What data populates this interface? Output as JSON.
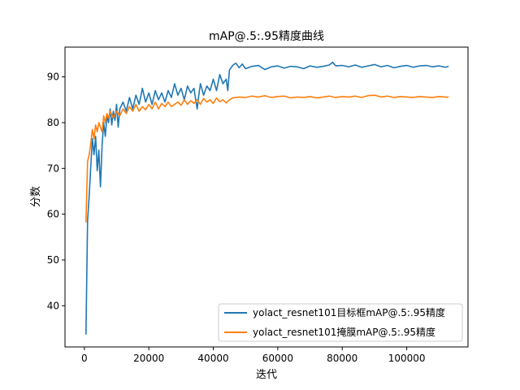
{
  "chart_data": {
    "type": "line",
    "title": "mAP@.5:.95精度曲线",
    "xlabel": "迭代",
    "ylabel": "分数",
    "xlim": [
      -6000,
      119000
    ],
    "ylim": [
      31,
      96.5
    ],
    "xticks": [
      0,
      20000,
      40000,
      60000,
      80000,
      100000
    ],
    "xtick_labels": [
      "0",
      "20000",
      "40000",
      "60000",
      "80000",
      "100000"
    ],
    "yticks": [
      40,
      50,
      60,
      70,
      80,
      90
    ],
    "ytick_labels": [
      "40",
      "50",
      "60",
      "70",
      "80",
      "90"
    ],
    "grid": false,
    "legend_position": "lower-right",
    "series": [
      {
        "name": "yolact_resnet101目标框mAP@.5:.95精度",
        "color": "#1f77b4",
        "points": [
          [
            500,
            33.7
          ],
          [
            1000,
            58.5
          ],
          [
            1500,
            64.0
          ],
          [
            2000,
            70.5
          ],
          [
            2500,
            76.5
          ],
          [
            3000,
            73.0
          ],
          [
            3500,
            77.0
          ],
          [
            4000,
            69.5
          ],
          [
            4500,
            74.0
          ],
          [
            5000,
            66.0
          ],
          [
            5500,
            75.0
          ],
          [
            6000,
            80.0
          ],
          [
            6500,
            77.0
          ],
          [
            7000,
            81.5
          ],
          [
            7500,
            80.0
          ],
          [
            8000,
            83.0
          ],
          [
            8500,
            79.5
          ],
          [
            9000,
            82.5
          ],
          [
            9500,
            80.5
          ],
          [
            10000,
            84.0
          ],
          [
            10500,
            79.0
          ],
          [
            11000,
            83.0
          ],
          [
            12000,
            84.5
          ],
          [
            13000,
            82.5
          ],
          [
            14000,
            85.5
          ],
          [
            15000,
            83.0
          ],
          [
            16000,
            86.0
          ],
          [
            17000,
            84.0
          ],
          [
            18000,
            87.5
          ],
          [
            19000,
            84.5
          ],
          [
            20000,
            86.5
          ],
          [
            21000,
            84.0
          ],
          [
            22000,
            87.0
          ],
          [
            23000,
            85.0
          ],
          [
            24000,
            86.5
          ],
          [
            25000,
            84.5
          ],
          [
            26000,
            87.0
          ],
          [
            27000,
            85.5
          ],
          [
            28000,
            88.5
          ],
          [
            29000,
            86.0
          ],
          [
            30000,
            87.5
          ],
          [
            31000,
            85.0
          ],
          [
            32000,
            88.0
          ],
          [
            33000,
            86.5
          ],
          [
            34000,
            87.5
          ],
          [
            35000,
            83.0
          ],
          [
            35500,
            86.0
          ],
          [
            36000,
            88.5
          ],
          [
            37000,
            86.0
          ],
          [
            38000,
            88.0
          ],
          [
            39000,
            87.0
          ],
          [
            40000,
            89.5
          ],
          [
            41000,
            87.0
          ],
          [
            42000,
            90.5
          ],
          [
            43000,
            88.5
          ],
          [
            44000,
            89.5
          ],
          [
            44500,
            87.0
          ],
          [
            45000,
            91.5
          ],
          [
            46000,
            92.5
          ],
          [
            47000,
            93.0
          ],
          [
            48000,
            92.0
          ],
          [
            49000,
            92.8
          ],
          [
            50000,
            91.8
          ],
          [
            52000,
            92.3
          ],
          [
            54000,
            92.5
          ],
          [
            56000,
            91.6
          ],
          [
            58000,
            92.2
          ],
          [
            60000,
            92.4
          ],
          [
            62000,
            91.9
          ],
          [
            64000,
            92.3
          ],
          [
            66000,
            92.2
          ],
          [
            68000,
            91.8
          ],
          [
            70000,
            92.4
          ],
          [
            72000,
            92.1
          ],
          [
            74000,
            92.3
          ],
          [
            76000,
            92.6
          ],
          [
            77000,
            93.2
          ],
          [
            78000,
            92.4
          ],
          [
            80000,
            92.5
          ],
          [
            82000,
            92.2
          ],
          [
            84000,
            92.6
          ],
          [
            86000,
            92.1
          ],
          [
            88000,
            92.4
          ],
          [
            90000,
            92.7
          ],
          [
            92000,
            92.2
          ],
          [
            94000,
            92.5
          ],
          [
            96000,
            92.0
          ],
          [
            98000,
            92.3
          ],
          [
            100000,
            92.5
          ],
          [
            102000,
            92.1
          ],
          [
            104000,
            92.4
          ],
          [
            106000,
            92.5
          ],
          [
            108000,
            92.2
          ],
          [
            110000,
            92.4
          ],
          [
            112000,
            92.1
          ],
          [
            113000,
            92.3
          ]
        ]
      },
      {
        "name": "yolact_resnet101掩膜mAP@.5:.95精度",
        "color": "#ff7f0e",
        "points": [
          [
            500,
            58.2
          ],
          [
            1000,
            71.5
          ],
          [
            1500,
            73.0
          ],
          [
            2000,
            75.5
          ],
          [
            2500,
            78.5
          ],
          [
            3000,
            76.5
          ],
          [
            3500,
            79.5
          ],
          [
            4000,
            78.0
          ],
          [
            4500,
            80.0
          ],
          [
            5000,
            79.0
          ],
          [
            5500,
            78.0
          ],
          [
            6000,
            81.5
          ],
          [
            6500,
            80.0
          ],
          [
            7000,
            82.0
          ],
          [
            7500,
            81.0
          ],
          [
            8000,
            82.5
          ],
          [
            9000,
            81.0
          ],
          [
            10000,
            82.5
          ],
          [
            11000,
            81.5
          ],
          [
            12000,
            83.0
          ],
          [
            13000,
            82.0
          ],
          [
            14000,
            83.5
          ],
          [
            15000,
            82.5
          ],
          [
            16000,
            84.0
          ],
          [
            17000,
            82.5
          ],
          [
            18000,
            83.5
          ],
          [
            19000,
            82.8
          ],
          [
            20000,
            84.0
          ],
          [
            21000,
            83.0
          ],
          [
            22000,
            84.5
          ],
          [
            23000,
            83.0
          ],
          [
            24000,
            84.2
          ],
          [
            25000,
            83.5
          ],
          [
            26000,
            84.5
          ],
          [
            27000,
            83.5
          ],
          [
            28000,
            84.0
          ],
          [
            29000,
            84.5
          ],
          [
            30000,
            83.8
          ],
          [
            31000,
            85.0
          ],
          [
            32000,
            84.0
          ],
          [
            33000,
            84.8
          ],
          [
            34000,
            84.2
          ],
          [
            35000,
            85.0
          ],
          [
            36000,
            84.0
          ],
          [
            37000,
            85.3
          ],
          [
            38000,
            84.5
          ],
          [
            39000,
            85.0
          ],
          [
            40000,
            84.2
          ],
          [
            41000,
            85.4
          ],
          [
            42000,
            84.6
          ],
          [
            43000,
            85.0
          ],
          [
            44000,
            84.3
          ],
          [
            45000,
            85.0
          ],
          [
            46000,
            85.4
          ],
          [
            48000,
            85.6
          ],
          [
            50000,
            85.5
          ],
          [
            52000,
            85.8
          ],
          [
            54000,
            85.6
          ],
          [
            56000,
            85.9
          ],
          [
            58000,
            85.5
          ],
          [
            60000,
            85.7
          ],
          [
            62000,
            85.8
          ],
          [
            64000,
            85.4
          ],
          [
            66000,
            85.6
          ],
          [
            68000,
            85.5
          ],
          [
            70000,
            85.7
          ],
          [
            72000,
            85.4
          ],
          [
            74000,
            85.6
          ],
          [
            76000,
            85.8
          ],
          [
            78000,
            85.5
          ],
          [
            80000,
            85.7
          ],
          [
            82000,
            85.6
          ],
          [
            84000,
            85.8
          ],
          [
            86000,
            85.5
          ],
          [
            88000,
            85.9
          ],
          [
            90000,
            86.0
          ],
          [
            92000,
            85.6
          ],
          [
            94000,
            85.8
          ],
          [
            96000,
            85.5
          ],
          [
            98000,
            85.7
          ],
          [
            100000,
            85.6
          ],
          [
            102000,
            85.5
          ],
          [
            104000,
            85.7
          ],
          [
            106000,
            85.6
          ],
          [
            108000,
            85.5
          ],
          [
            110000,
            85.7
          ],
          [
            112000,
            85.6
          ],
          [
            113000,
            85.6
          ]
        ]
      }
    ]
  }
}
